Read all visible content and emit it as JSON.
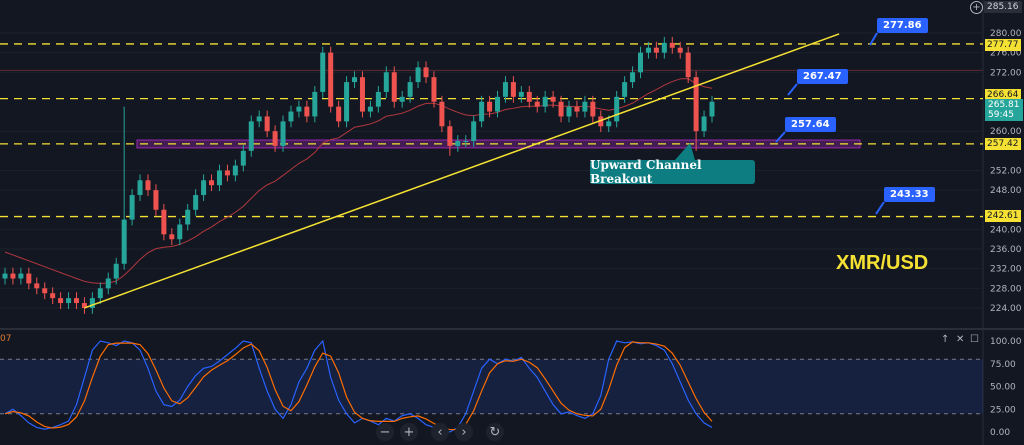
{
  "chart_data": [
    {
      "type": "candlestick",
      "title": "XMR/USD",
      "y_ticks": [
        280,
        276,
        272,
        260,
        252,
        248,
        240,
        236,
        232,
        228,
        224
      ],
      "ylim": [
        222,
        286
      ],
      "grid": true,
      "candles_close": [
        231,
        230,
        231,
        229,
        228,
        227,
        226,
        225,
        226,
        225,
        224,
        226,
        228,
        230,
        233,
        242,
        247,
        250,
        248,
        244,
        239,
        238,
        241,
        244,
        247,
        250,
        249,
        252,
        251,
        253,
        256,
        262,
        263,
        260,
        257,
        262,
        264,
        265,
        263,
        268,
        276,
        265,
        262,
        270,
        271,
        264,
        265,
        268,
        272,
        266,
        267,
        270,
        273,
        271,
        266,
        261,
        257,
        258,
        258,
        262,
        266,
        264,
        267,
        270,
        267,
        268,
        266,
        265,
        267,
        266,
        263,
        265,
        264,
        266,
        263,
        261,
        262,
        267,
        270,
        272,
        276,
        277,
        276,
        278,
        277,
        276,
        271,
        260,
        263,
        266
      ],
      "first_open": 230,
      "wick_extremes": [
        {
          "index": 15,
          "high": 265
        },
        {
          "index": 56,
          "low": 255
        },
        {
          "index": 87,
          "low": 256
        }
      ],
      "horizontal_levels": [
        277.77,
        266.64,
        257.42,
        242.61
      ],
      "level_labels": [
        "277.77",
        "266.64",
        "257.42",
        "242.61"
      ],
      "support_zone": [
        256.6,
        258.2
      ],
      "reference_line": 272.4,
      "trendline": {
        "from_index": 10,
        "from_price": 224,
        "to_index": 105,
        "to_price": 279.8
      },
      "current_price": "265.81",
      "countdown": "59:45",
      "top_price": "285.16",
      "annotations": {
        "targets": [
          "277.86",
          "267.47",
          "257.64",
          "243.33"
        ],
        "callout": "Upward Channel Breakout"
      },
      "colors": {
        "up": "#26a69a",
        "down": "#ef5350",
        "level": "#f5e133",
        "ma": "#b2383e",
        "trend": "#f5e133",
        "zone": "#9c27b0"
      }
    },
    {
      "type": "line",
      "indicator_label": "07",
      "y_ticks": [
        "100.00",
        "75.00",
        "50.00",
        "25.00",
        "0.00"
      ],
      "ylim": [
        0,
        100
      ],
      "band": [
        20,
        80
      ],
      "k_values": [
        20,
        25,
        18,
        10,
        5,
        3,
        5,
        8,
        12,
        30,
        60,
        90,
        100,
        98,
        95,
        100,
        98,
        90,
        70,
        45,
        30,
        28,
        35,
        50,
        62,
        70,
        72,
        78,
        85,
        92,
        100,
        98,
        70,
        45,
        25,
        15,
        30,
        55,
        70,
        90,
        100,
        60,
        35,
        20,
        10,
        15,
        12,
        8,
        15,
        12,
        18,
        20,
        15,
        8,
        5,
        3,
        0,
        5,
        20,
        45,
        70,
        80,
        75,
        80,
        78,
        82,
        70,
        60,
        45,
        30,
        20,
        22,
        18,
        15,
        20,
        40,
        80,
        100,
        98,
        99,
        97,
        98,
        95,
        90,
        75,
        55,
        35,
        20,
        10,
        5
      ],
      "colors": {
        "k": "#2962ff",
        "d": "#ff6d00"
      }
    }
  ],
  "controls": {
    "zoom_out": "−",
    "zoom_in": "+",
    "scroll_left": "‹",
    "scroll_right": "›",
    "reset": "↻",
    "pane_up": "↑",
    "pane_close": "✕",
    "pane_max": "☐",
    "add": "+"
  }
}
